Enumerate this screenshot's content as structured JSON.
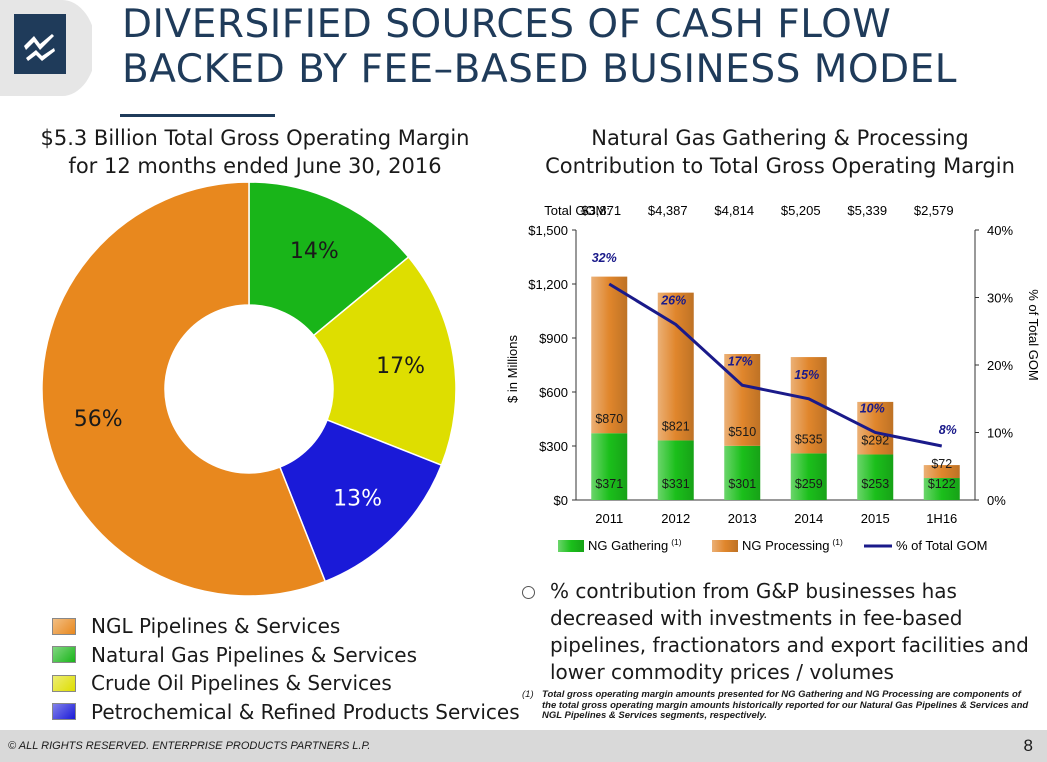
{
  "title": {
    "line1": "DIVERSIFIED SOURCES OF CASH FLOW",
    "line2": "BACKED BY FEE–BASED BUSINESS MODEL"
  },
  "colors": {
    "title": "#1f3b5a",
    "line": "#1a1a8a"
  },
  "left": {
    "subtitle_line1": "$5.3 Billion Total Gross Operating Margin",
    "subtitle_line2": "for 12 months ended June 30, 2016"
  },
  "right": {
    "subtitle_line1": "Natural Gas Gathering & Processing",
    "subtitle_line2": "Contribution to Total Gross Operating Margin"
  },
  "bullet_text": "% contribution from G&P businesses has decreased with investments in fee-based pipelines, fractionators and export facilities and lower commodity prices / volumes",
  "footnote": {
    "num": "(1)",
    "text": "Total gross operating margin amounts presented for NG Gathering and NG Processing are components of the total gross operating margin amounts historically reported for our Natural Gas Pipelines & Services and NGL Pipelines & Services segments, respectively."
  },
  "footer": {
    "copyright": "© ALL RIGHTS RESERVED. ENTERPRISE PRODUCTS PARTNERS L.P.",
    "page": "8"
  },
  "chart_data": [
    {
      "type": "pie",
      "title": "$5.3 Billion Total Gross Operating Margin for 12 months ended June 30, 2016",
      "donut": true,
      "start_angle_deg": 0,
      "slices": [
        {
          "label": "Natural Gas Pipelines & Services",
          "value": 14,
          "text": "14%",
          "color": "#19b519"
        },
        {
          "label": "Crude Oil Pipelines & Services",
          "value": 17,
          "text": "17%",
          "color": "#dede00"
        },
        {
          "label": "Petrochemical & Refined Products Services",
          "value": 13,
          "text": "13%",
          "color": "#1a1ad8"
        },
        {
          "label": "NGL Pipelines & Services",
          "value": 56,
          "text": "56%",
          "color": "#e8881e"
        }
      ],
      "legend_order": [
        "NGL Pipelines & Services",
        "Natural Gas Pipelines & Services",
        "Crude Oil Pipelines & Services",
        "Petrochemical & Refined Products Services"
      ]
    },
    {
      "type": "bar",
      "stacked": true,
      "title": "Natural Gas Gathering & Processing Contribution to Total Gross Operating Margin",
      "categories": [
        "2011",
        "2012",
        "2013",
        "2014",
        "2015",
        "1H16"
      ],
      "total_gom_label": "Total GOM:",
      "total_gom": [
        "$3,871",
        "$4,387",
        "$4,814",
        "$5,205",
        "$5,339",
        "$2,579"
      ],
      "ylabel": "$ in Millions",
      "ylim": [
        0,
        1500
      ],
      "yticks": [
        0,
        300,
        600,
        900,
        1200,
        1500
      ],
      "ytick_labels": [
        "$0",
        "$300",
        "$600",
        "$900",
        "$1,200",
        "$1,500"
      ],
      "y2label": "% of Total GOM",
      "y2lim": [
        0,
        40
      ],
      "y2ticks": [
        0,
        10,
        20,
        30,
        40
      ],
      "y2tick_labels": [
        "0%",
        "10%",
        "20%",
        "30%",
        "40%"
      ],
      "series": [
        {
          "name": "NG Gathering",
          "sup": "(1)",
          "values": [
            371,
            331,
            301,
            259,
            253,
            122
          ],
          "labels": [
            "$371",
            "$331",
            "$301",
            "$259",
            "$253",
            "$122"
          ],
          "color": "#1bbf1b"
        },
        {
          "name": "NG Processing",
          "sup": "(1)",
          "values": [
            870,
            821,
            510,
            535,
            292,
            72
          ],
          "labels": [
            "$870",
            "$821",
            "$510",
            "$535",
            "$292",
            "$72"
          ],
          "color": "#e0862c"
        }
      ],
      "line": {
        "name": "% of Total GOM",
        "values": [
          32,
          26,
          17,
          15,
          10,
          8
        ],
        "labels": [
          "32%",
          "26%",
          "17%",
          "15%",
          "10%",
          "8%"
        ],
        "color": "#1a1a8a"
      }
    }
  ]
}
